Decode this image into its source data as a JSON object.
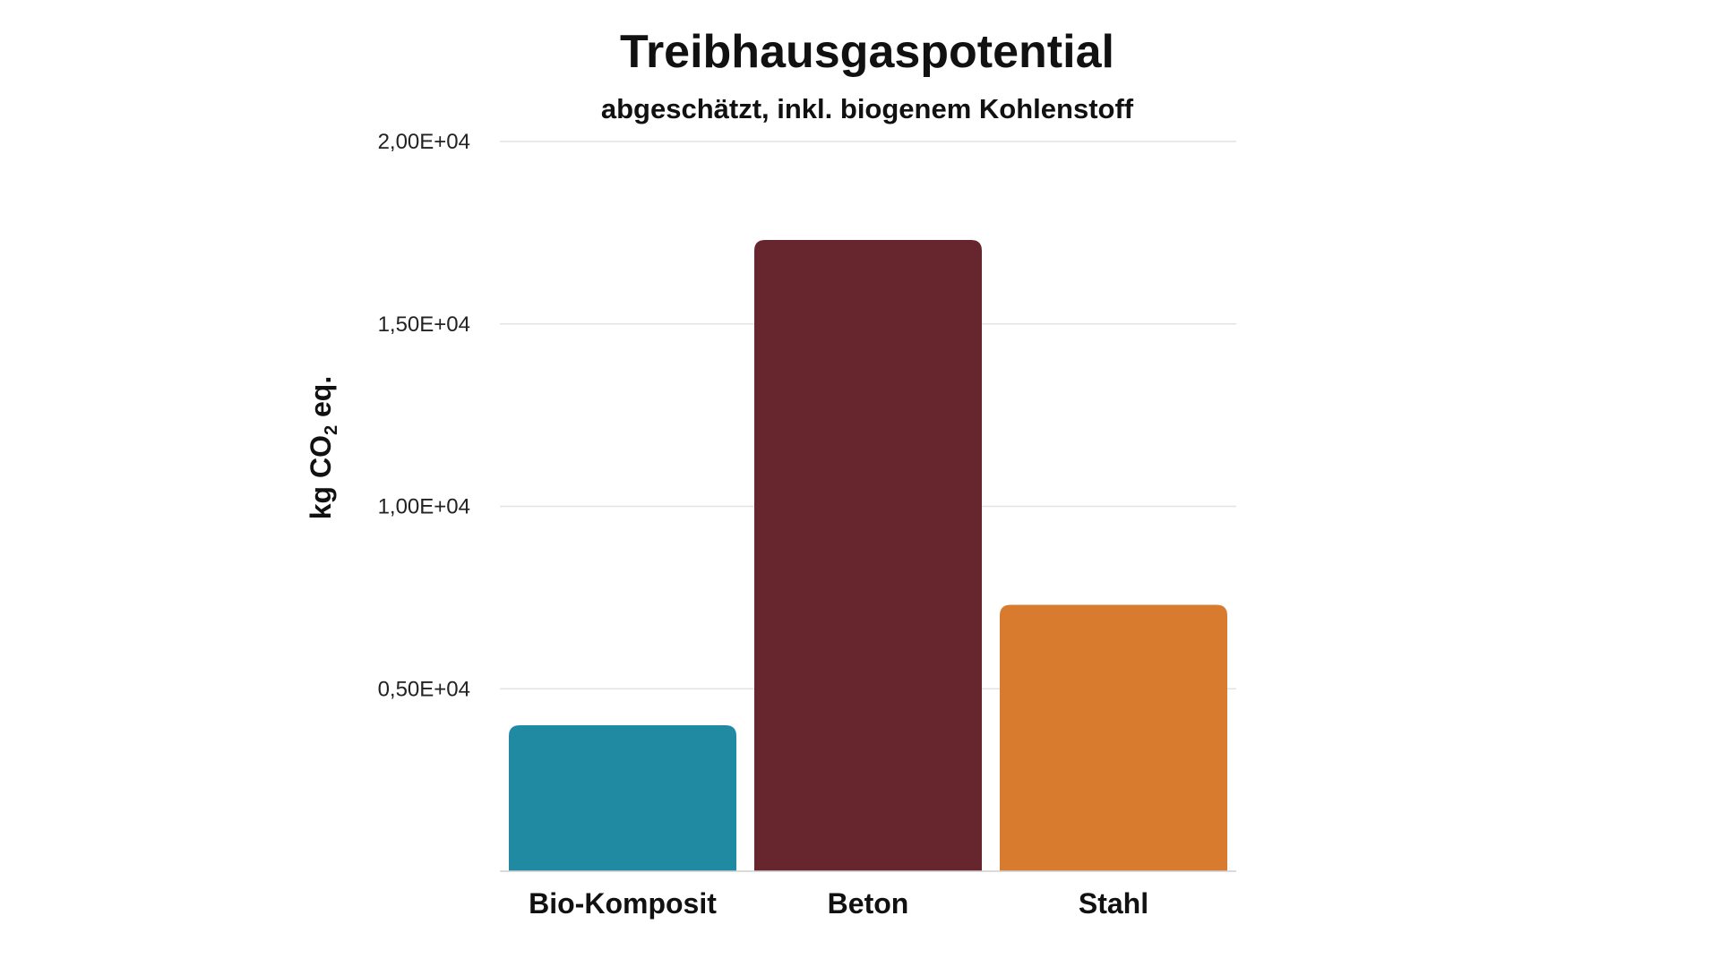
{
  "chart_data": {
    "type": "bar",
    "title": "Treibhausgaspotential",
    "subtitle": "abgeschätzt, inkl. biogenem Kohlenstoff",
    "ylabel": {
      "prefix": "kg  CO",
      "subscript": "2",
      "suffix": " eq."
    },
    "xlabel": "",
    "categories": [
      "Bio-Komposit",
      "Beton",
      "Stahl"
    ],
    "values": [
      4000,
      17300,
      7300
    ],
    "colors": [
      "#218aa3",
      "#67252d",
      "#d87b2e"
    ],
    "ylim": [
      0,
      20000
    ],
    "yticks": [
      {
        "value": 5000,
        "label": "0,50E+04"
      },
      {
        "value": 10000,
        "label": "1,00E+04"
      },
      {
        "value": 15000,
        "label": "1,50E+04"
      },
      {
        "value": 20000,
        "label": "2,00E+04"
      }
    ],
    "grid": true,
    "legend": "none"
  }
}
